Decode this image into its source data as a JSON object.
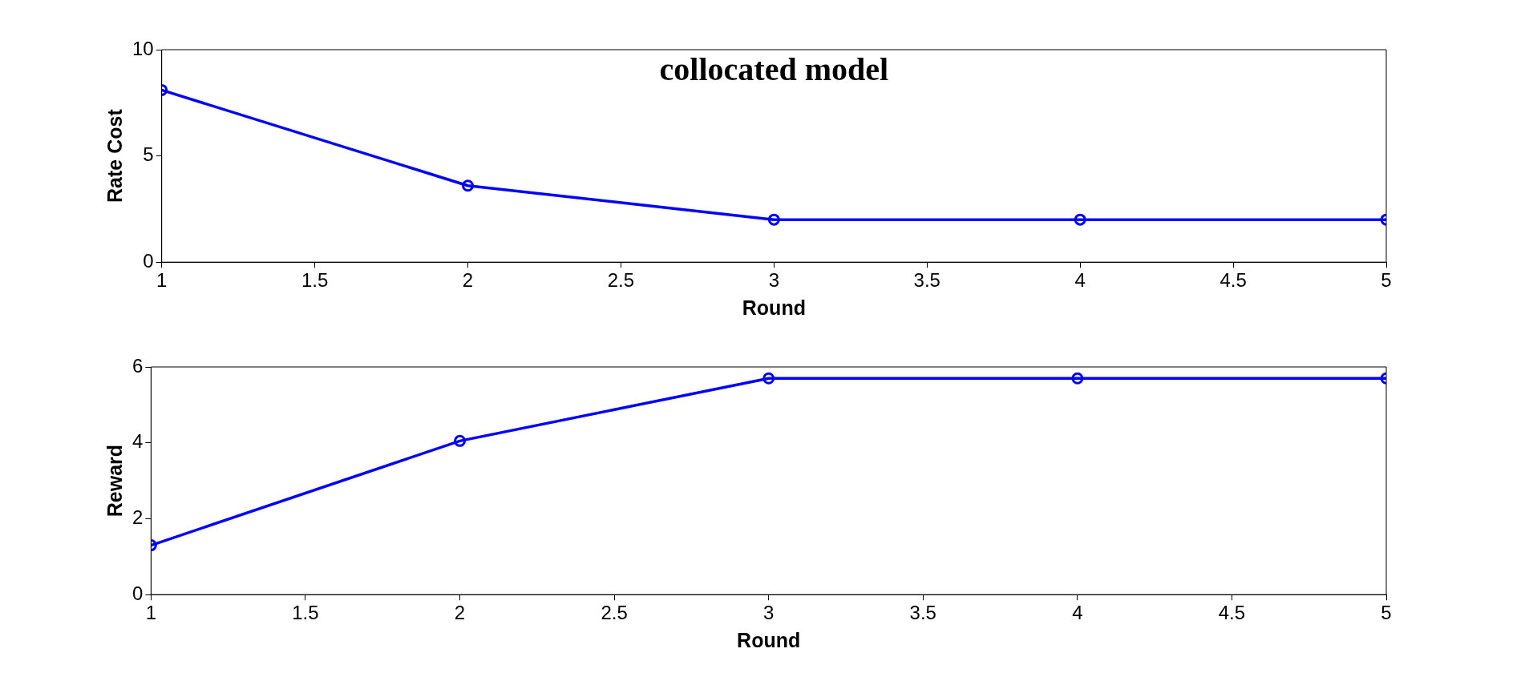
{
  "chart_data": [
    {
      "type": "line",
      "title": "collocated model",
      "xlabel": "Round",
      "ylabel": "Rate Cost",
      "x": [
        1,
        2,
        3,
        4,
        5
      ],
      "xlim": [
        1,
        5
      ],
      "xticks": [
        1,
        1.5,
        2,
        2.5,
        3,
        3.5,
        4,
        4.5,
        5
      ],
      "ylim": [
        0,
        10
      ],
      "yticks": [
        0,
        5,
        10
      ],
      "grid": false,
      "legend": false,
      "marker": "circle",
      "line_style": "solid",
      "series": [
        {
          "color": "#0000ff",
          "values": [
            8.1,
            3.6,
            2.0,
            2.0,
            2.0
          ]
        }
      ]
    },
    {
      "type": "line",
      "xlabel": "Round",
      "ylabel": "Reward",
      "x": [
        1,
        2,
        3,
        4,
        5
      ],
      "xlim": [
        1,
        5
      ],
      "xticks": [
        1,
        1.5,
        2,
        2.5,
        3,
        3.5,
        4,
        4.5,
        5
      ],
      "ylim": [
        0,
        6
      ],
      "yticks": [
        0,
        2,
        4,
        6
      ],
      "grid": false,
      "legend": false,
      "marker": "circle",
      "line_style": "solid",
      "series": [
        {
          "color": "#0000ff",
          "values": [
            1.3,
            4.05,
            5.7,
            5.7,
            5.7
          ]
        }
      ]
    }
  ]
}
